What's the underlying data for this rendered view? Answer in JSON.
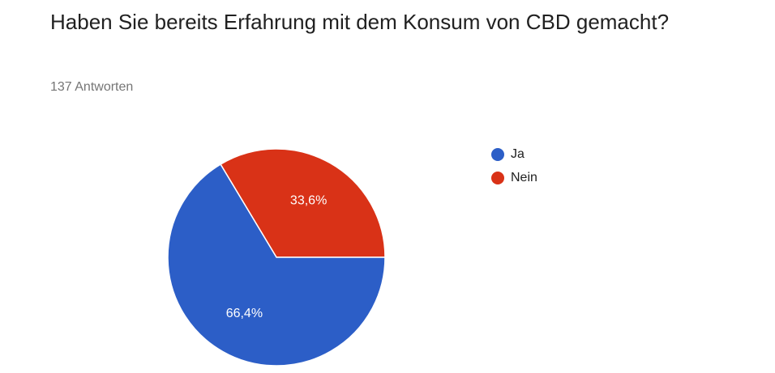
{
  "header": {
    "title": "Haben Sie bereits Erfahrung mit dem Konsum von CBD gemacht?",
    "response_count": "137 Antworten"
  },
  "chart_data": {
    "type": "pie",
    "categories": [
      "Ja",
      "Nein"
    ],
    "values": [
      66.4,
      33.6
    ],
    "data_labels": [
      "66,4%",
      "33,6%"
    ],
    "colors": [
      "#2c5ec7",
      "#d93217"
    ],
    "legend_position": "right"
  }
}
